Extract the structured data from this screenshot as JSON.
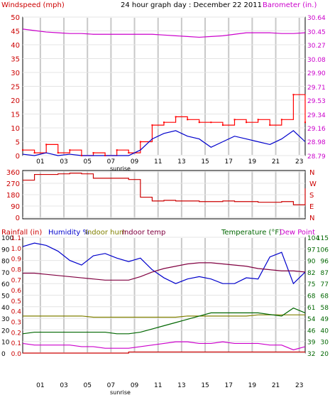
{
  "header": {
    "windspeed_label": "Windspeed (mph)",
    "title": "24 hour graph day : December 22 2011",
    "barometer_label": "Barometer (in.)"
  },
  "x_ticks": [
    "01",
    "03",
    "05",
    "07",
    "09",
    "11",
    "13",
    "15",
    "17",
    "19",
    "21",
    "23"
  ],
  "sunrise_label": "sunrise",
  "colors": {
    "gust": "#ff0000",
    "avg": "#0000cc",
    "baro": "#cc00cc",
    "winddir": "#cc0000",
    "humidity": "#0000cc",
    "indoor_hum": "#808000",
    "indoor_temp": "#800040",
    "temperature": "#006600",
    "dewpoint": "#cc00cc",
    "rain": "#cc0000",
    "grid": "#c8c8c8"
  },
  "chart_data": [
    {
      "type": "line",
      "title": "24 hour graph day : December 22 2011",
      "ylabel": "Windspeed (mph)",
      "y2label": "Barometer (in.)",
      "ylim": [
        0,
        50
      ],
      "y_ticks": [
        "0",
        "2.5",
        "5",
        "7.5",
        "10",
        "12.5",
        "15",
        "17.5",
        "20",
        "22.5",
        "25",
        "27.5",
        "30",
        "32.5",
        "35",
        "37.5",
        "40",
        "45",
        "50"
      ],
      "y_ticks_left": [
        "0",
        "5",
        "10",
        "15",
        "20",
        "25",
        "30",
        "35",
        "40",
        "45",
        "50"
      ],
      "y2_ticks": [
        "28.79",
        "28.98",
        "29.16",
        "29.34",
        "29.53",
        "29.71",
        "29.90",
        "30.08",
        "30.27",
        "30.45",
        "30.64"
      ],
      "y2lim": [
        28.79,
        30.64
      ],
      "x": [
        0,
        1,
        2,
        3,
        4,
        5,
        6,
        7,
        8,
        9,
        10,
        11,
        12,
        13,
        14,
        15,
        16,
        17,
        18,
        19,
        20,
        21,
        22,
        23,
        24
      ],
      "series": [
        {
          "name": "gust",
          "values": [
            2,
            1,
            4,
            1,
            2,
            0,
            1,
            0,
            2,
            1,
            5,
            11,
            12,
            14,
            13,
            12,
            12,
            11,
            13,
            12,
            13,
            11,
            13,
            22,
            12
          ]
        },
        {
          "name": "average",
          "values": [
            0.5,
            0,
            1,
            0,
            0.5,
            0,
            0,
            0,
            0,
            0,
            2,
            6,
            8,
            9,
            7,
            6,
            3,
            5,
            7,
            6,
            5,
            4,
            6,
            9,
            5
          ]
        },
        {
          "name": "barometer",
          "values": [
            30.48,
            30.46,
            30.44,
            30.43,
            30.42,
            30.42,
            30.41,
            30.41,
            30.41,
            30.41,
            30.41,
            30.41,
            30.4,
            30.39,
            30.38,
            30.37,
            30.38,
            30.39,
            30.41,
            30.43,
            30.43,
            30.43,
            30.42,
            30.42,
            30.43
          ]
        }
      ]
    },
    {
      "type": "line",
      "ylabel": "Wind direction",
      "ylim": [
        0,
        360
      ],
      "y_ticks": [
        "0",
        "90",
        "180",
        "270",
        "360"
      ],
      "right_labels": [
        "N",
        "W",
        "S",
        "E",
        "N"
      ],
      "x": [
        0,
        1,
        2,
        3,
        4,
        5,
        6,
        7,
        8,
        9,
        10,
        11,
        12,
        13,
        14,
        15,
        16,
        17,
        18,
        19,
        20,
        21,
        22,
        23,
        24
      ],
      "series": [
        {
          "name": "direction",
          "values": [
            295,
            340,
            340,
            345,
            350,
            345,
            310,
            310,
            310,
            300,
            160,
            130,
            135,
            130,
            130,
            125,
            125,
            130,
            125,
            125,
            120,
            120,
            125,
            100,
            230
          ]
        }
      ]
    },
    {
      "type": "line",
      "labels": {
        "rainfall": "Rainfall (in)",
        "humidity": "Humidity %",
        "indoor_hum": "Indoor hum",
        "indoor_temp": "Indoor temp",
        "temperature": "Temperature (°F)",
        "dewpoint": "Dew Point"
      },
      "y_left_hum": [
        "0",
        "10",
        "20",
        "30",
        "40",
        "50",
        "60",
        "70",
        "80",
        "90",
        "100"
      ],
      "y_left_rain": [
        "0.0",
        "0.1",
        "0.2",
        "0.3",
        "0.4",
        "0.5",
        "0.6",
        "0.7",
        "0.8",
        "0.9",
        "1.0",
        "1.1"
      ],
      "y_right_temp": [
        "32",
        "39",
        "46",
        "54",
        "61",
        "68",
        "75",
        "82",
        "90",
        "97",
        "104"
      ],
      "y_right_indoor": [
        "20",
        "30",
        "40",
        "49",
        "58",
        "68",
        "77",
        "87",
        "96",
        "106",
        "115"
      ],
      "ylim": [
        0,
        100
      ],
      "x": [
        0,
        1,
        2,
        3,
        4,
        5,
        6,
        7,
        8,
        9,
        10,
        11,
        12,
        13,
        14,
        15,
        16,
        17,
        18,
        19,
        20,
        21,
        22,
        23,
        24
      ],
      "series": [
        {
          "name": "Humidity %",
          "values": [
            92,
            95,
            93,
            88,
            80,
            76,
            84,
            86,
            82,
            79,
            82,
            72,
            65,
            60,
            64,
            66,
            64,
            60,
            60,
            65,
            64,
            83,
            87,
            60,
            70
          ]
        },
        {
          "name": "Indoor hum",
          "values": [
            32,
            32,
            32,
            32,
            32,
            32,
            31,
            31,
            31,
            31,
            31,
            31,
            31,
            31,
            32,
            32,
            32,
            32,
            32,
            32,
            33,
            33,
            33,
            33,
            33
          ]
        },
        {
          "name": "Indoor temp",
          "values": [
            69,
            69,
            68,
            67,
            66,
            65,
            64,
            63,
            63,
            63,
            66,
            70,
            73,
            75,
            77,
            78,
            78,
            77,
            76,
            75,
            73,
            72,
            71,
            71,
            70
          ]
        },
        {
          "name": "Temperature",
          "values": [
            44,
            45,
            45,
            45,
            45,
            45,
            45,
            45,
            44,
            44,
            45,
            47,
            49,
            51,
            53,
            55,
            57,
            57,
            57,
            57,
            57,
            56,
            55,
            60,
            57
          ]
        },
        {
          "name": "Dew Point",
          "values": [
            38,
            37,
            37,
            37,
            37,
            36,
            36,
            35,
            35,
            35,
            36,
            37,
            38,
            39,
            39,
            38,
            38,
            39,
            38,
            38,
            38,
            37,
            37,
            34,
            36
          ]
        },
        {
          "name": "Rainfall",
          "values": [
            0,
            0,
            0,
            0,
            0,
            0,
            0,
            0,
            0,
            0.01,
            0.01,
            0.01,
            0.01,
            0.01,
            0.01,
            0.01,
            0.01,
            0.01,
            0.01,
            0.01,
            0.01,
            0.01,
            0.01,
            0.01,
            0.01
          ]
        }
      ]
    }
  ]
}
